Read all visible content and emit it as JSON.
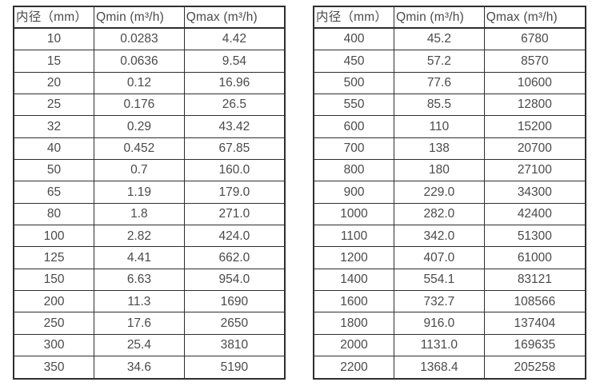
{
  "colors": {
    "background": "#ffffff",
    "border": "#2e2e2e",
    "text": "#4a4a4a"
  },
  "chart_data": [
    {
      "type": "table",
      "title": "",
      "columns": [
        "内径（mm）",
        "Qmin (m³/h)",
        "Qmax (m³/h)"
      ],
      "rows": [
        [
          "10",
          "0.0283",
          "4.42"
        ],
        [
          "15",
          "0.0636",
          "9.54"
        ],
        [
          "20",
          "0.12",
          "16.96"
        ],
        [
          "25",
          "0.176",
          "26.5"
        ],
        [
          "32",
          "0.29",
          "43.42"
        ],
        [
          "40",
          "0.452",
          "67.85"
        ],
        [
          "50",
          "0.7",
          "160.0"
        ],
        [
          "65",
          "1.19",
          "179.0"
        ],
        [
          "80",
          "1.8",
          "271.0"
        ],
        [
          "100",
          "2.82",
          "424.0"
        ],
        [
          "125",
          "4.41",
          "662.0"
        ],
        [
          "150",
          "6.63",
          "954.0"
        ],
        [
          "200",
          "11.3",
          "1690"
        ],
        [
          "250",
          "17.6",
          "2650"
        ],
        [
          "300",
          "25.4",
          "3810"
        ],
        [
          "350",
          "34.6",
          "5190"
        ]
      ]
    },
    {
      "type": "table",
      "title": "",
      "columns": [
        "内径（mm）",
        "Qmin (m³/h)",
        "Qmax (m³/h)"
      ],
      "rows": [
        [
          "400",
          "45.2",
          "6780"
        ],
        [
          "450",
          "57.2",
          "8570"
        ],
        [
          "500",
          "77.6",
          "10600"
        ],
        [
          "550",
          "85.5",
          "12800"
        ],
        [
          "600",
          "110",
          "15200"
        ],
        [
          "700",
          "138",
          "20700"
        ],
        [
          "800",
          "180",
          "27100"
        ],
        [
          "900",
          "229.0",
          "34300"
        ],
        [
          "1000",
          "282.0",
          "42400"
        ],
        [
          "1100",
          "342.0",
          "51300"
        ],
        [
          "1200",
          "407.0",
          "61000"
        ],
        [
          "1400",
          "554.1",
          "83121"
        ],
        [
          "1600",
          "732.7",
          "108566"
        ],
        [
          "1800",
          "916.0",
          "137404"
        ],
        [
          "2000",
          "1131.0",
          "169635"
        ],
        [
          "2200",
          "1368.4",
          "205258"
        ]
      ]
    }
  ]
}
